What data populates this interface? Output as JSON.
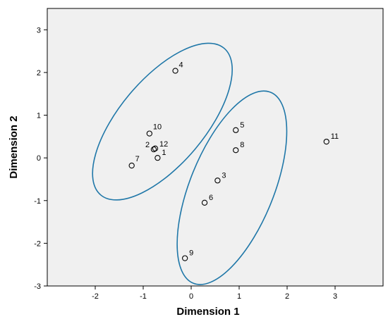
{
  "chart_data": {
    "type": "scatter",
    "title": "",
    "xlabel": "Dimension 1",
    "ylabel": "Dimension 2",
    "xlim": [
      -3,
      4
    ],
    "ylim": [
      -3,
      3.5
    ],
    "x_ticks": [
      -2,
      -1,
      0,
      1,
      2,
      3
    ],
    "y_ticks": [
      -3,
      -2,
      -1,
      0,
      1,
      2,
      3
    ],
    "grid": false,
    "background_color": "#f0f0f0",
    "point_color": "#000000",
    "ellipse_color": "#1f77a8",
    "points": [
      {
        "label": "1",
        "x": -0.7,
        "y": 0.0
      },
      {
        "label": "2",
        "x": -0.78,
        "y": 0.2
      },
      {
        "label": "3",
        "x": 0.55,
        "y": -0.53
      },
      {
        "label": "4",
        "x": -0.33,
        "y": 2.04
      },
      {
        "label": "5",
        "x": 0.93,
        "y": 0.65
      },
      {
        "label": "6",
        "x": 0.28,
        "y": -1.05
      },
      {
        "label": "7",
        "x": -1.24,
        "y": -0.18
      },
      {
        "label": "8",
        "x": 0.93,
        "y": 0.18
      },
      {
        "label": "9",
        "x": -0.13,
        "y": -2.35
      },
      {
        "label": "10",
        "x": -0.87,
        "y": 0.57
      },
      {
        "label": "11",
        "x": 2.82,
        "y": 0.38
      },
      {
        "label": "12",
        "x": -0.75,
        "y": 0.22
      }
    ],
    "ellipses": [
      {
        "cx": -0.6,
        "cy": 0.85,
        "rx": 2.0,
        "ry": 1.0,
        "rotation_deg": 50
      },
      {
        "cx": 0.85,
        "cy": -0.7,
        "rx": 2.15,
        "ry": 0.98,
        "rotation_deg": 68
      }
    ]
  }
}
